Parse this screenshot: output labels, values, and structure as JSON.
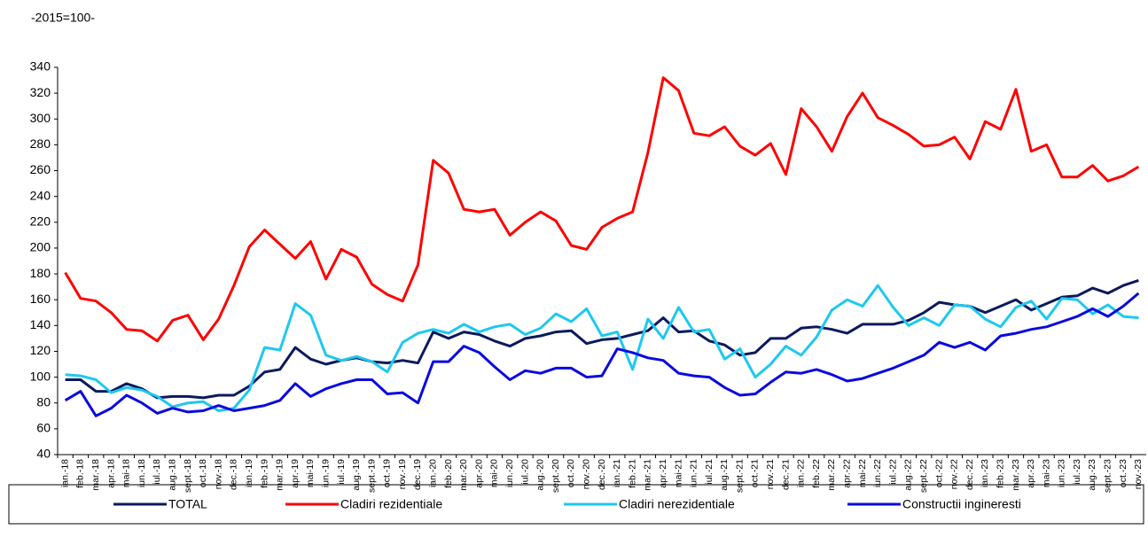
{
  "chart_data": {
    "type": "line",
    "subtitle": "-2015=100-",
    "categories": [
      "ian.-18",
      "feb.-18",
      "mar.-18",
      "apr.-18",
      "mai-18",
      "iun.-18",
      "iul.-18",
      "aug.-18",
      "sept.-18",
      "oct.-18",
      "nov.-18",
      "dec.-18",
      "ian.-19",
      "feb.-19",
      "mar.-19",
      "apr.-19",
      "mai-19",
      "iun.-19",
      "iul.-19",
      "aug.-19",
      "sept.-19",
      "oct.-19",
      "nov.-19",
      "dec.-19",
      "ian.-20",
      "feb.-20",
      "mar.-20",
      "apr.-20",
      "mai-20",
      "iun.-20",
      "iul.-20",
      "aug.-20",
      "sept.-20",
      "oct.-20",
      "nov.-20",
      "dec.-20",
      "ian.-21",
      "feb.-21",
      "mar.-21",
      "apr.-21",
      "mai-21",
      "iun.-21",
      "iul.-21",
      "aug.-21",
      "sept.-21",
      "oct.-21",
      "nov.-21",
      "dec.-21",
      "ian.-22",
      "feb.-22",
      "mar.-22",
      "apr.-22",
      "mai-22",
      "iun.-22",
      "iul.-22",
      "aug.-22",
      "sept.-22",
      "oct.-22",
      "nov.-22",
      "dec.-22",
      "ian.-23",
      "feb.-23",
      "mar.-23",
      "apr.-23",
      "mai-23",
      "iun.-23",
      "iul.-23",
      "aug.-23",
      "sept.-23",
      "oct.-23",
      "nov.-23"
    ],
    "series": [
      {
        "name": "TOTAL",
        "color": "#0b1a5e",
        "values": [
          98,
          98,
          89,
          89,
          95,
          91,
          84,
          85,
          85,
          84,
          86,
          86,
          93,
          104,
          106,
          123,
          114,
          110,
          113,
          115,
          112,
          111,
          113,
          111,
          135,
          130,
          135,
          133,
          128,
          124,
          130,
          132,
          135,
          136,
          126,
          129,
          130,
          133,
          136,
          146,
          135,
          136,
          128,
          125,
          117,
          119,
          130,
          130,
          138,
          139,
          137,
          134,
          141,
          141,
          141,
          144,
          150,
          158,
          156,
          155,
          150,
          155,
          160,
          152,
          157,
          162,
          163,
          169,
          165,
          171,
          175
        ]
      },
      {
        "name": "Cladiri rezidentiale",
        "color": "#ff0000",
        "values": [
          181,
          161,
          159,
          150,
          137,
          136,
          128,
          144,
          148,
          129,
          145,
          171,
          201,
          214,
          203,
          192,
          205,
          176,
          199,
          193,
          172,
          164,
          159,
          187,
          268,
          258,
          230,
          228,
          230,
          210,
          220,
          228,
          221,
          202,
          199,
          216,
          223,
          228,
          274,
          332,
          322,
          289,
          287,
          294,
          279,
          272,
          281,
          257,
          308,
          294,
          275,
          302,
          320,
          301,
          295,
          288,
          279,
          280,
          286,
          269,
          298,
          292,
          323,
          275,
          280,
          255,
          255,
          264,
          252,
          256,
          263
        ]
      },
      {
        "name": "Cladiri nerezidentiale",
        "color": "#1ec8f0",
        "values": [
          102,
          101,
          98,
          88,
          92,
          90,
          85,
          77,
          80,
          81,
          74,
          76,
          90,
          123,
          121,
          157,
          148,
          117,
          113,
          116,
          112,
          104,
          127,
          134,
          137,
          134,
          141,
          135,
          139,
          141,
          133,
          138,
          149,
          143,
          153,
          132,
          135,
          106,
          145,
          130,
          154,
          135,
          137,
          114,
          122,
          100,
          110,
          124,
          117,
          131,
          152,
          160,
          155,
          171,
          154,
          140,
          146,
          140,
          156,
          155,
          145,
          139,
          154,
          159,
          145,
          161,
          160,
          149,
          156,
          147,
          146
        ]
      },
      {
        "name": "Constructii ingineresti",
        "color": "#0a0ae0",
        "values": [
          82,
          89,
          70,
          76,
          86,
          80,
          72,
          76,
          73,
          74,
          78,
          74,
          76,
          78,
          82,
          95,
          85,
          91,
          95,
          98,
          98,
          87,
          88,
          80,
          112,
          112,
          124,
          119,
          108,
          98,
          105,
          103,
          107,
          107,
          100,
          101,
          122,
          119,
          115,
          113,
          103,
          101,
          100,
          92,
          86,
          87,
          96,
          104,
          103,
          106,
          102,
          97,
          99,
          103,
          107,
          112,
          117,
          127,
          123,
          127,
          121,
          132,
          134,
          137,
          139,
          143,
          147,
          153,
          147,
          155,
          165
        ]
      }
    ],
    "ylim": [
      40,
      340
    ],
    "yticks": [
      40,
      60,
      80,
      100,
      120,
      140,
      160,
      180,
      200,
      220,
      240,
      260,
      280,
      300,
      320,
      340
    ],
    "grid": false,
    "legend": "bottom"
  }
}
